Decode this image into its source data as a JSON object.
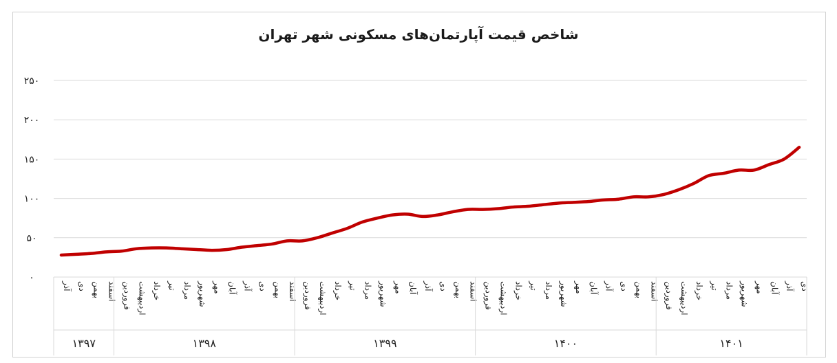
{
  "chart_data": {
    "type": "line",
    "title": "شاخص قیمت آپارتمان‌های مسکونی شهر تهران",
    "xlabel": "",
    "ylabel": "",
    "ylim": [
      0,
      250
    ],
    "yticks": [
      "۰",
      "۵۰",
      "۱۰۰",
      "۱۵۰",
      "۲۰۰",
      "۲۵۰"
    ],
    "grid": true,
    "legend": "none",
    "color": "#c00000",
    "categories": [
      "آذر",
      "دی",
      "بهمن",
      "اسفند",
      "فروردین",
      "اردیبهشت",
      "خرداد",
      "تیر",
      "مرداد",
      "شهریور",
      "مهر",
      "آبان",
      "آذر",
      "دی",
      "بهمن",
      "اسفند",
      "فروردین",
      "اردیبهشت",
      "خرداد",
      "تیر",
      "مرداد",
      "شهریور",
      "مهر",
      "آبان",
      "آذر",
      "دی",
      "بهمن",
      "اسفند",
      "فروردین",
      "اردیبهشت",
      "خرداد",
      "تیر",
      "مرداد",
      "شهریور",
      "مهر",
      "آبان",
      "آذر",
      "دی",
      "بهمن",
      "اسفند",
      "فروردین",
      "اردیبهشت",
      "خرداد",
      "تیر",
      "مرداد",
      "شهریور",
      "مهر",
      "آبان",
      "آذر",
      "دی"
    ],
    "year_groups": [
      {
        "label": "۱۳۹۷",
        "count": 4
      },
      {
        "label": "۱۳۹۸",
        "count": 12
      },
      {
        "label": "۱۳۹۹",
        "count": 12
      },
      {
        "label": "۱۴۰۰",
        "count": 12
      },
      {
        "label": "۱۴۰۱",
        "count": 10
      }
    ],
    "values": [
      28,
      29,
      30,
      32,
      33,
      36,
      37,
      37,
      36,
      35,
      34,
      35,
      38,
      40,
      42,
      46,
      46,
      50,
      56,
      62,
      70,
      75,
      79,
      80,
      77,
      79,
      83,
      86,
      86,
      87,
      89,
      90,
      92,
      94,
      95,
      96,
      98,
      99,
      102,
      102,
      105,
      111,
      119,
      129,
      132,
      136,
      136,
      143,
      150,
      165
    ]
  }
}
